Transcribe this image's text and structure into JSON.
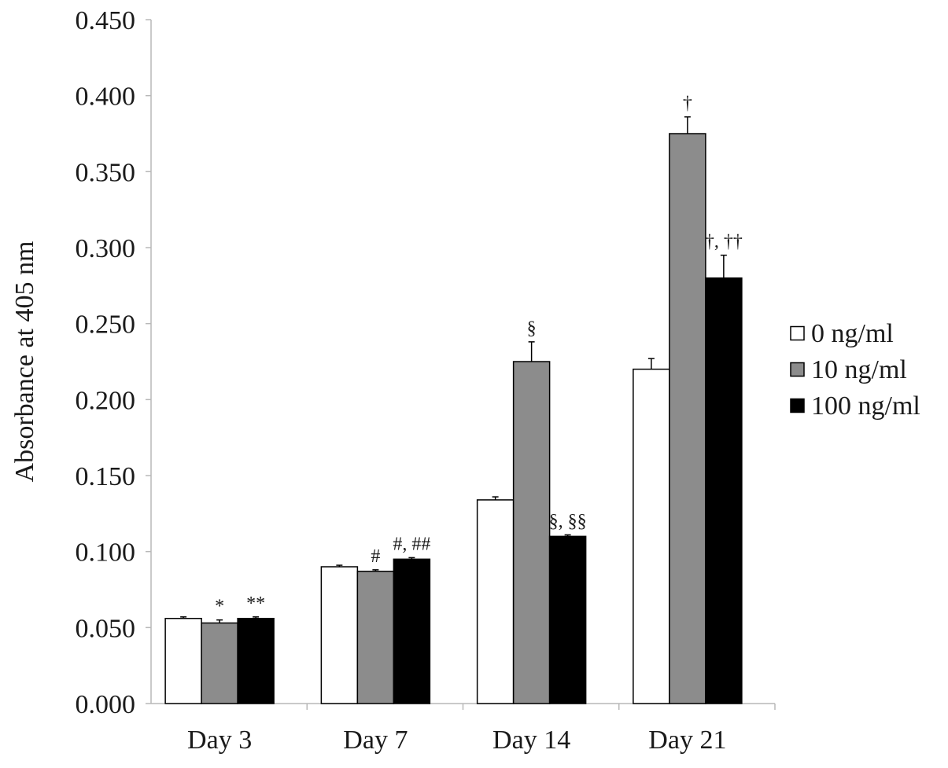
{
  "chart_data": {
    "type": "bar",
    "title": "",
    "xlabel": "",
    "ylabel": "Absorbance at 405 nm",
    "ylim": [
      0,
      0.45
    ],
    "y_ticks": [
      "0.000",
      "0.050",
      "0.100",
      "0.150",
      "0.200",
      "0.250",
      "0.300",
      "0.350",
      "0.400",
      "0.450"
    ],
    "categories": [
      "Day 3",
      "Day 7",
      "Day 14",
      "Day 21"
    ],
    "grid": false,
    "legend_position": "right",
    "series": [
      {
        "name": "0 ng/ml",
        "color": "#ffffff",
        "values": [
          0.056,
          0.09,
          0.134,
          0.22
        ],
        "errors": [
          0.001,
          0.001,
          0.002,
          0.007
        ],
        "annotations": [
          "",
          "",
          "",
          ""
        ]
      },
      {
        "name": "10 ng/ml",
        "color": "#8c8c8c",
        "values": [
          0.053,
          0.087,
          0.225,
          0.375
        ],
        "errors": [
          0.002,
          0.001,
          0.013,
          0.011
        ],
        "annotations": [
          "*",
          "#",
          "§",
          "†"
        ]
      },
      {
        "name": "100 ng/ml",
        "color": "#000000",
        "values": [
          0.056,
          0.095,
          0.11,
          0.28
        ],
        "errors": [
          0.001,
          0.001,
          0.001,
          0.015
        ],
        "annotations": [
          "**",
          "#, ##",
          "§, §§",
          "†, ††"
        ]
      }
    ]
  }
}
